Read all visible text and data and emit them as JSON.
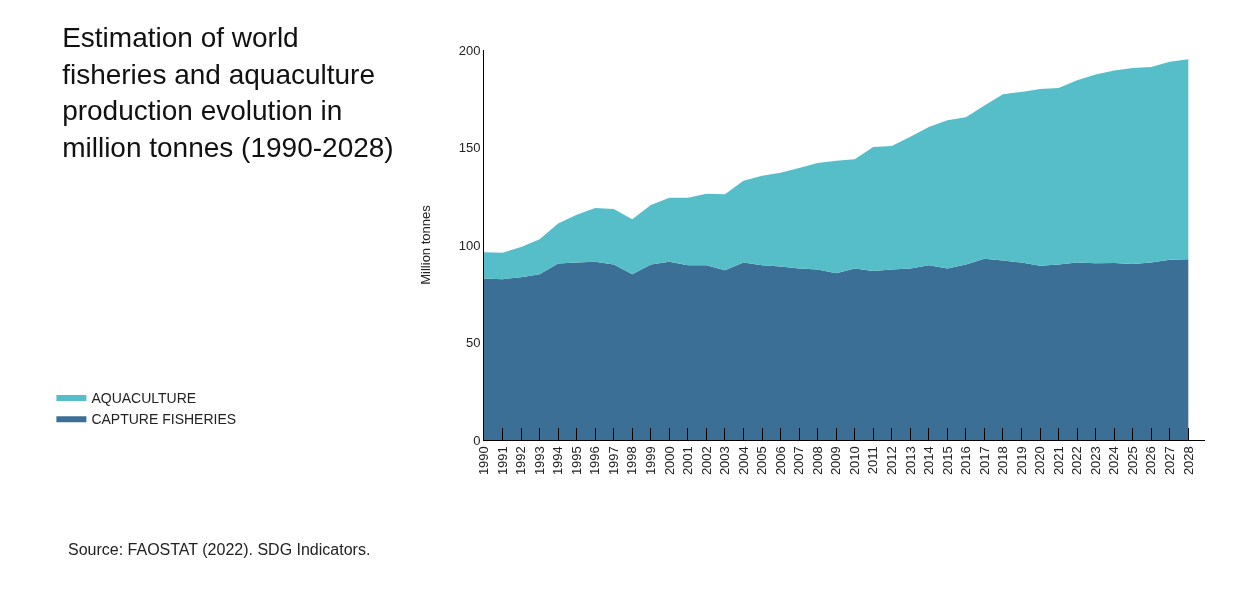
{
  "chart_data": {
    "type": "area",
    "stacked": true,
    "title": "Estimation of world fisheries and aquaculture production evolution in million tonnes (1990-2028)",
    "ylabel": "Million tonnes",
    "categories": [
      "1990",
      "1991",
      "1992",
      "1993",
      "1994",
      "1995",
      "1996",
      "1997",
      "1998",
      "1999",
      "2000",
      "2001",
      "2002",
      "2003",
      "2004",
      "2005",
      "2006",
      "2007",
      "2008",
      "2009",
      "2010",
      "2011",
      "2012",
      "2013",
      "2014",
      "2015",
      "2016",
      "2017",
      "2018",
      "2019",
      "2020",
      "2021",
      "2022",
      "2023",
      "2024",
      "2025",
      "2026",
      "2027",
      "2028"
    ],
    "series": [
      {
        "name": "CAPTURE FISHERIES",
        "color": "#3c6f96",
        "values": [
          82.8,
          82.5,
          83.5,
          85,
          90.5,
          91,
          91.4,
          90,
          85,
          90,
          91.4,
          89.6,
          89.6,
          87,
          91,
          89.6,
          89,
          88,
          87.5,
          85.5,
          88,
          86.7,
          87.5,
          88,
          89.6,
          88,
          90,
          93,
          92,
          91,
          89.3,
          90,
          91,
          90.6,
          90.8,
          90.3,
          91,
          92.5,
          92.7
        ]
      },
      {
        "name": "AQUACULTURE",
        "color": "#55bec8",
        "values": [
          13.5,
          13.5,
          15.5,
          18,
          20.5,
          24.5,
          27.6,
          28.5,
          28.2,
          30.5,
          32.8,
          34.6,
          36.7,
          39,
          42,
          45.9,
          48,
          51.5,
          54.5,
          57.7,
          56,
          63.6,
          63.3,
          67.5,
          70.9,
          76,
          75.5,
          78.5,
          85.3,
          87.5,
          90.7,
          90.5,
          93.5,
          96.9,
          98.7,
          100.5,
          100.3,
          101.5,
          102.5
        ]
      }
    ],
    "ylim": [
      0,
      200
    ],
    "yticks": [
      0,
      50,
      100,
      150,
      200
    ],
    "legend": "bottom left",
    "annotations": [
      "Source: FAOSTAT (2022). SDG Indicators."
    ]
  }
}
